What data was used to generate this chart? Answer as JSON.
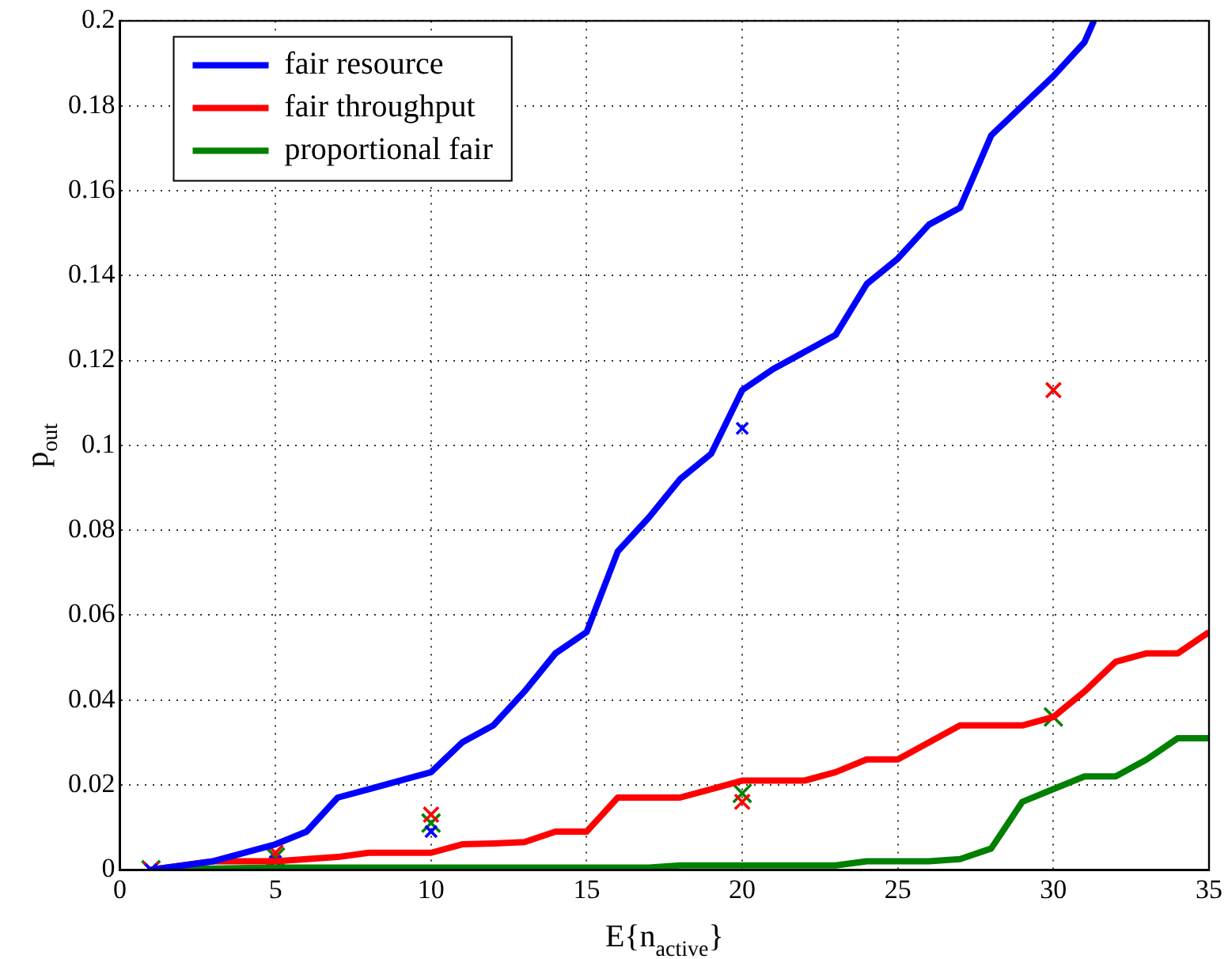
{
  "chart_data": {
    "type": "line",
    "xlabel": "E{n$_{active}$}",
    "ylabel": "p$_{out}$",
    "xlim": [
      0,
      35
    ],
    "xticks": [
      0,
      5,
      10,
      15,
      20,
      25,
      30,
      35
    ],
    "ylim": [
      0,
      0.2
    ],
    "yticks": [
      0,
      0.02,
      0.04,
      0.06,
      0.08,
      0.1,
      0.12,
      0.14,
      0.16,
      0.18,
      0.2
    ],
    "grid": true,
    "legend": "top left",
    "line_style": "solid",
    "series": [
      {
        "name": "fair resource",
        "color": "#0000ff",
        "marker": "none",
        "x": [
          1,
          3,
          5,
          6,
          7,
          8,
          9,
          10,
          11,
          12,
          13,
          14,
          15,
          16,
          17,
          18,
          19,
          20,
          21,
          22,
          23,
          24,
          25,
          26,
          27,
          28,
          29,
          30,
          31,
          31.3
        ],
        "values": [
          0,
          0.002,
          0.006,
          0.009,
          0.017,
          0.019,
          0.021,
          0.023,
          0.03,
          0.034,
          0.042,
          0.051,
          0.056,
          0.075,
          0.083,
          0.092,
          0.098,
          0.113,
          0.118,
          0.122,
          0.126,
          0.138,
          0.144,
          0.152,
          0.156,
          0.173,
          0.18,
          0.187,
          0.195,
          0.2
        ]
      },
      {
        "name": "fair throughput",
        "color": "#ff0000",
        "marker": "none",
        "x": [
          1,
          3,
          5,
          6,
          7,
          8,
          9,
          10,
          11,
          12,
          13,
          14,
          15,
          16,
          17,
          18,
          19,
          20,
          21,
          22,
          23,
          24,
          25,
          26,
          27,
          28,
          29,
          30,
          31,
          32,
          33,
          34,
          35
        ],
        "values": [
          0,
          0.002,
          0.002,
          0.0025,
          0.003,
          0.004,
          0.004,
          0.004,
          0.006,
          0.0062,
          0.0065,
          0.009,
          0.009,
          0.017,
          0.017,
          0.017,
          0.019,
          0.021,
          0.021,
          0.021,
          0.023,
          0.026,
          0.026,
          0.03,
          0.034,
          0.034,
          0.034,
          0.036,
          0.042,
          0.049,
          0.051,
          0.051,
          0.056
        ]
      },
      {
        "name": "proportional fair",
        "color": "#008000",
        "marker": "none",
        "x": [
          1,
          5,
          10,
          17,
          18,
          23,
          24,
          26,
          27,
          28,
          29,
          30,
          31,
          32,
          33,
          34,
          35
        ],
        "values": [
          0,
          0.0005,
          0.0005,
          0.0005,
          0.001,
          0.001,
          0.002,
          0.002,
          0.0025,
          0.005,
          0.016,
          0.019,
          0.022,
          0.022,
          0.026,
          0.031,
          0.031
        ]
      },
      {
        "type": "scatter",
        "color": "#0000ff",
        "marker": "cross",
        "x": [
          1,
          5,
          10,
          20
        ],
        "values": [
          0,
          0.002,
          0.009,
          0.104
        ]
      },
      {
        "type": "scatter",
        "color": "#ff0000",
        "marker": "cross",
        "x": [
          1,
          5,
          10,
          20,
          30
        ],
        "values": [
          0,
          0.004,
          0.013,
          0.016,
          0.113
        ]
      },
      {
        "type": "scatter",
        "color": "#008000",
        "marker": "cross",
        "x": [
          1,
          5,
          10,
          20,
          30
        ],
        "values": [
          0,
          0.003,
          0.011,
          0.018,
          0.036
        ]
      }
    ]
  }
}
